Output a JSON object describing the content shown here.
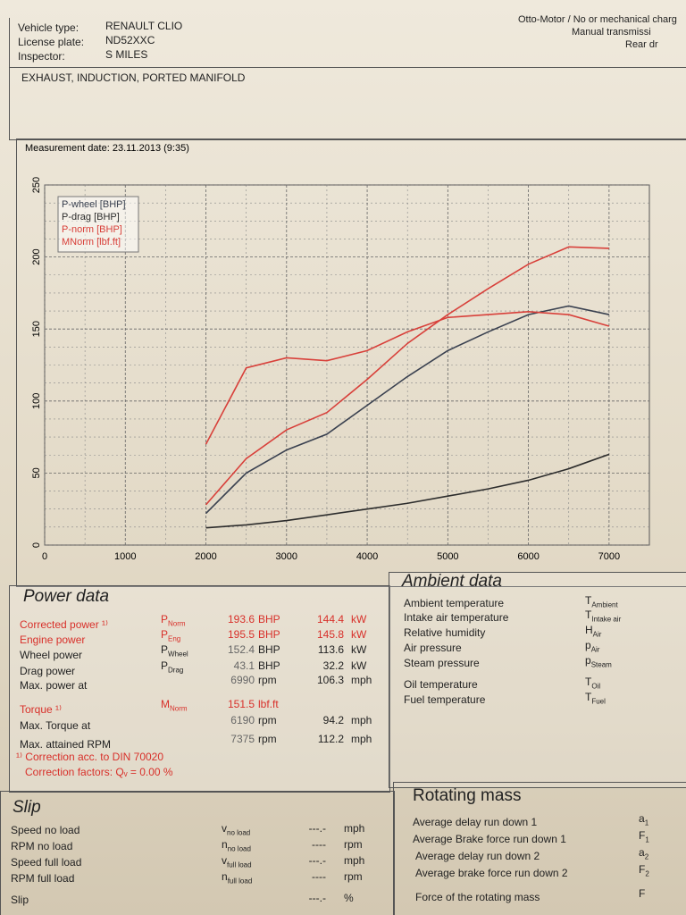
{
  "header": {
    "fields": [
      {
        "label": "Vehicle type:",
        "value": "RENAULT CLIO"
      },
      {
        "label": "License plate:",
        "value": "ND52XXC"
      },
      {
        "label": "Inspector:",
        "value": "S MILES"
      }
    ],
    "right_lines": [
      "Otto-Motor / No or mechanical charg",
      "Manual transmissi",
      "Rear dr"
    ],
    "title": "EXHAUST, INDUCTION, PORTED MANIFOLD"
  },
  "chart_data": {
    "type": "line",
    "title": "Measurement date: 23.11.2013 (9:35)",
    "x": [
      2000,
      2500,
      3000,
      3500,
      4000,
      4500,
      5000,
      5500,
      6000,
      6500,
      7000
    ],
    "series": [
      {
        "name": "P-wheel [BHP]",
        "color": "#3a4150",
        "values": [
          22,
          50,
          66,
          77,
          97,
          117,
          135,
          148,
          160,
          166,
          160
        ]
      },
      {
        "name": "P-drag [BHP]",
        "color": "#2c2c2c",
        "values": [
          12,
          14,
          17,
          21,
          25,
          29,
          34,
          39,
          45,
          53,
          63
        ]
      },
      {
        "name": "P-norm [BHP]",
        "color": "#d8403a",
        "values": [
          28,
          60,
          80,
          92,
          115,
          140,
          160,
          178,
          195,
          207,
          206
        ]
      },
      {
        "name": "MNorm [lbf.ft]",
        "color": "#d8403a",
        "values": [
          70,
          123,
          130,
          128,
          135,
          148,
          158,
          160,
          162,
          160,
          152
        ]
      }
    ],
    "xlim": [
      0,
      7500
    ],
    "xticks": [
      0,
      1000,
      2000,
      3000,
      4000,
      5000,
      6000,
      7000
    ],
    "ylim": [
      0,
      250
    ],
    "yticks": [
      0,
      50,
      100,
      150,
      200,
      250
    ],
    "grid": true,
    "legend": "top-left"
  },
  "power_data": {
    "title": "Power data",
    "rows": [
      {
        "label": "Corrected power ¹⁾",
        "symbol": "P",
        "sub": "Norm",
        "value": 193.6,
        "unit": "BHP",
        "value2": 144.4,
        "unit2": "kW",
        "color": "#d8302a"
      },
      {
        "label": "Engine power",
        "symbol": "P",
        "sub": "Eng",
        "value": 195.5,
        "unit": "BHP",
        "value2": 145.8,
        "unit2": "kW",
        "color": "#d8302a"
      },
      {
        "label": "Wheel power",
        "symbol": "P",
        "sub": "Wheel",
        "value": 152.4,
        "unit": "BHP",
        "value2": 113.6,
        "unit2": "kW"
      },
      {
        "label": "Drag power",
        "symbol": "P",
        "sub": "Drag",
        "value": 43.1,
        "unit": "BHP",
        "value2": 32.2,
        "unit2": "kW"
      },
      {
        "label": "Max. power at",
        "value": 6990,
        "unit": "rpm",
        "value2": 106.3,
        "unit2": "mph"
      },
      {
        "label": "Torque ¹⁾",
        "symbol": "M",
        "sub": "Norm",
        "value": 151.5,
        "unit": "lbf.ft",
        "color": "#d8302a"
      },
      {
        "label": "Max. Torque at",
        "value": 6190,
        "unit": "rpm",
        "value2": 94.2,
        "unit2": "mph"
      },
      {
        "label": "Max. attained RPM",
        "value": 7375,
        "unit": "rpm",
        "value2": 112.2,
        "unit2": "mph"
      }
    ],
    "notes": [
      "¹⁾ Correction acc. to DIN 70020",
      "Correction factors: Qᵥ = 0.00 %"
    ]
  },
  "ambient_data": {
    "title": "Ambient data",
    "rows": [
      {
        "label": "Ambient temperature",
        "symbol": "T",
        "sub": "Ambient"
      },
      {
        "label": "Intake air temperature",
        "symbol": "T",
        "sub": "Intake air"
      },
      {
        "label": "Relative humidity",
        "symbol": "H",
        "sub": "Air"
      },
      {
        "label": "Air pressure",
        "symbol": "p",
        "sub": "Air"
      },
      {
        "label": "Steam pressure",
        "symbol": "p",
        "sub": "Steam"
      },
      {
        "label": "Oil temperature",
        "symbol": "T",
        "sub": "Oil"
      },
      {
        "label": "Fuel temperature",
        "symbol": "T",
        "sub": "Fuel"
      }
    ]
  },
  "slip": {
    "title": "Slip",
    "rows": [
      {
        "label": "Speed no load",
        "symbol": "v",
        "sub": "no load",
        "value": "---.-",
        "unit": "mph"
      },
      {
        "label": "RPM no load",
        "symbol": "n",
        "sub": "no load",
        "value": "----",
        "unit": "rpm"
      },
      {
        "label": "Speed full load",
        "symbol": "v",
        "sub": "full load",
        "value": "---.-",
        "unit": "mph"
      },
      {
        "label": "RPM full load",
        "symbol": "n",
        "sub": "full load",
        "value": "----",
        "unit": "rpm"
      },
      {
        "label": "Slip",
        "value": "---.-",
        "unit": "%"
      }
    ]
  },
  "rotating_mass": {
    "title": "Rotating mass",
    "rows": [
      {
        "label": "Average delay run down 1",
        "symbol": "a",
        "sub": "1"
      },
      {
        "label": "Average Brake force run down 1",
        "symbol": "F",
        "sub": "1"
      },
      {
        "label": "Average delay run down 2",
        "symbol": "a",
        "sub": "2"
      },
      {
        "label": "Average brake force run down 2",
        "symbol": "F",
        "sub": "2"
      },
      {
        "label": "Force of the rotating mass",
        "symbol": "F"
      }
    ]
  }
}
